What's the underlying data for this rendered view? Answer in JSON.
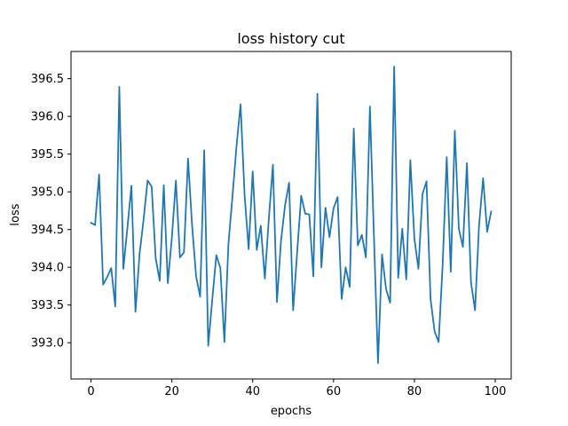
{
  "chart_data": {
    "type": "line",
    "title": "loss history cut",
    "xlabel": "epochs",
    "ylabel": "loss",
    "xlim": [
      -4.95,
      103.95
    ],
    "ylim": [
      392.52,
      396.86
    ],
    "xticks": [
      0,
      20,
      40,
      60,
      80,
      100
    ],
    "xtick_labels": [
      "0",
      "20",
      "40",
      "60",
      "80",
      "100"
    ],
    "yticks": [
      393.0,
      393.5,
      394.0,
      394.5,
      395.0,
      395.5,
      396.0,
      396.5
    ],
    "ytick_labels": [
      "393.0",
      "393.5",
      "394.0",
      "394.5",
      "395.0",
      "395.5",
      "396.0",
      "396.5"
    ],
    "grid": false,
    "line_color": "#1f77b4",
    "series": [
      {
        "x": [
          0,
          1,
          2,
          3,
          4,
          5,
          6,
          7,
          8,
          9,
          10,
          11,
          12,
          13,
          14,
          15,
          16,
          17,
          18,
          19,
          20,
          21,
          22,
          23,
          24,
          25,
          26,
          27,
          28,
          29,
          30,
          31,
          32,
          33,
          34,
          35,
          36,
          37,
          38,
          39,
          40,
          41,
          42,
          43,
          44,
          45,
          46,
          47,
          48,
          49,
          50,
          51,
          52,
          53,
          54,
          55,
          56,
          57,
          58,
          59,
          60,
          61,
          62,
          63,
          64,
          65,
          66,
          67,
          68,
          69,
          70,
          71,
          72,
          73,
          74,
          75,
          76,
          77,
          78,
          79,
          80,
          81,
          82,
          83,
          84,
          85,
          86,
          87,
          88,
          89,
          90,
          91,
          92,
          93,
          94,
          95,
          96,
          97,
          98,
          99
        ],
        "values": [
          394.59,
          394.56,
          395.23,
          393.77,
          393.87,
          393.99,
          393.48,
          396.39,
          393.98,
          394.52,
          395.08,
          393.41,
          394.17,
          394.63,
          395.15,
          395.07,
          394.12,
          393.82,
          395.09,
          393.79,
          394.39,
          395.15,
          394.13,
          394.2,
          395.44,
          394.56,
          393.88,
          393.61,
          395.55,
          392.96,
          393.57,
          394.16,
          393.99,
          393.01,
          394.31,
          394.94,
          395.61,
          396.16,
          394.95,
          394.24,
          395.27,
          394.23,
          394.55,
          393.85,
          394.65,
          395.36,
          393.54,
          394.35,
          394.82,
          395.12,
          393.43,
          394.2,
          394.95,
          394.71,
          394.7,
          393.88,
          396.3,
          394.0,
          394.79,
          394.4,
          394.78,
          394.93,
          393.58,
          394.0,
          393.74,
          395.84,
          394.29,
          394.43,
          394.13,
          396.13,
          394.4,
          392.73,
          394.17,
          393.71,
          393.53,
          396.66,
          393.86,
          394.51,
          393.84,
          395.42,
          394.38,
          393.98,
          394.97,
          395.14,
          393.58,
          393.15,
          393.01,
          394.04,
          395.46,
          393.94,
          395.81,
          394.51,
          394.27,
          395.38,
          393.8,
          393.43,
          394.56,
          395.18,
          394.47,
          394.74
        ]
      }
    ]
  }
}
